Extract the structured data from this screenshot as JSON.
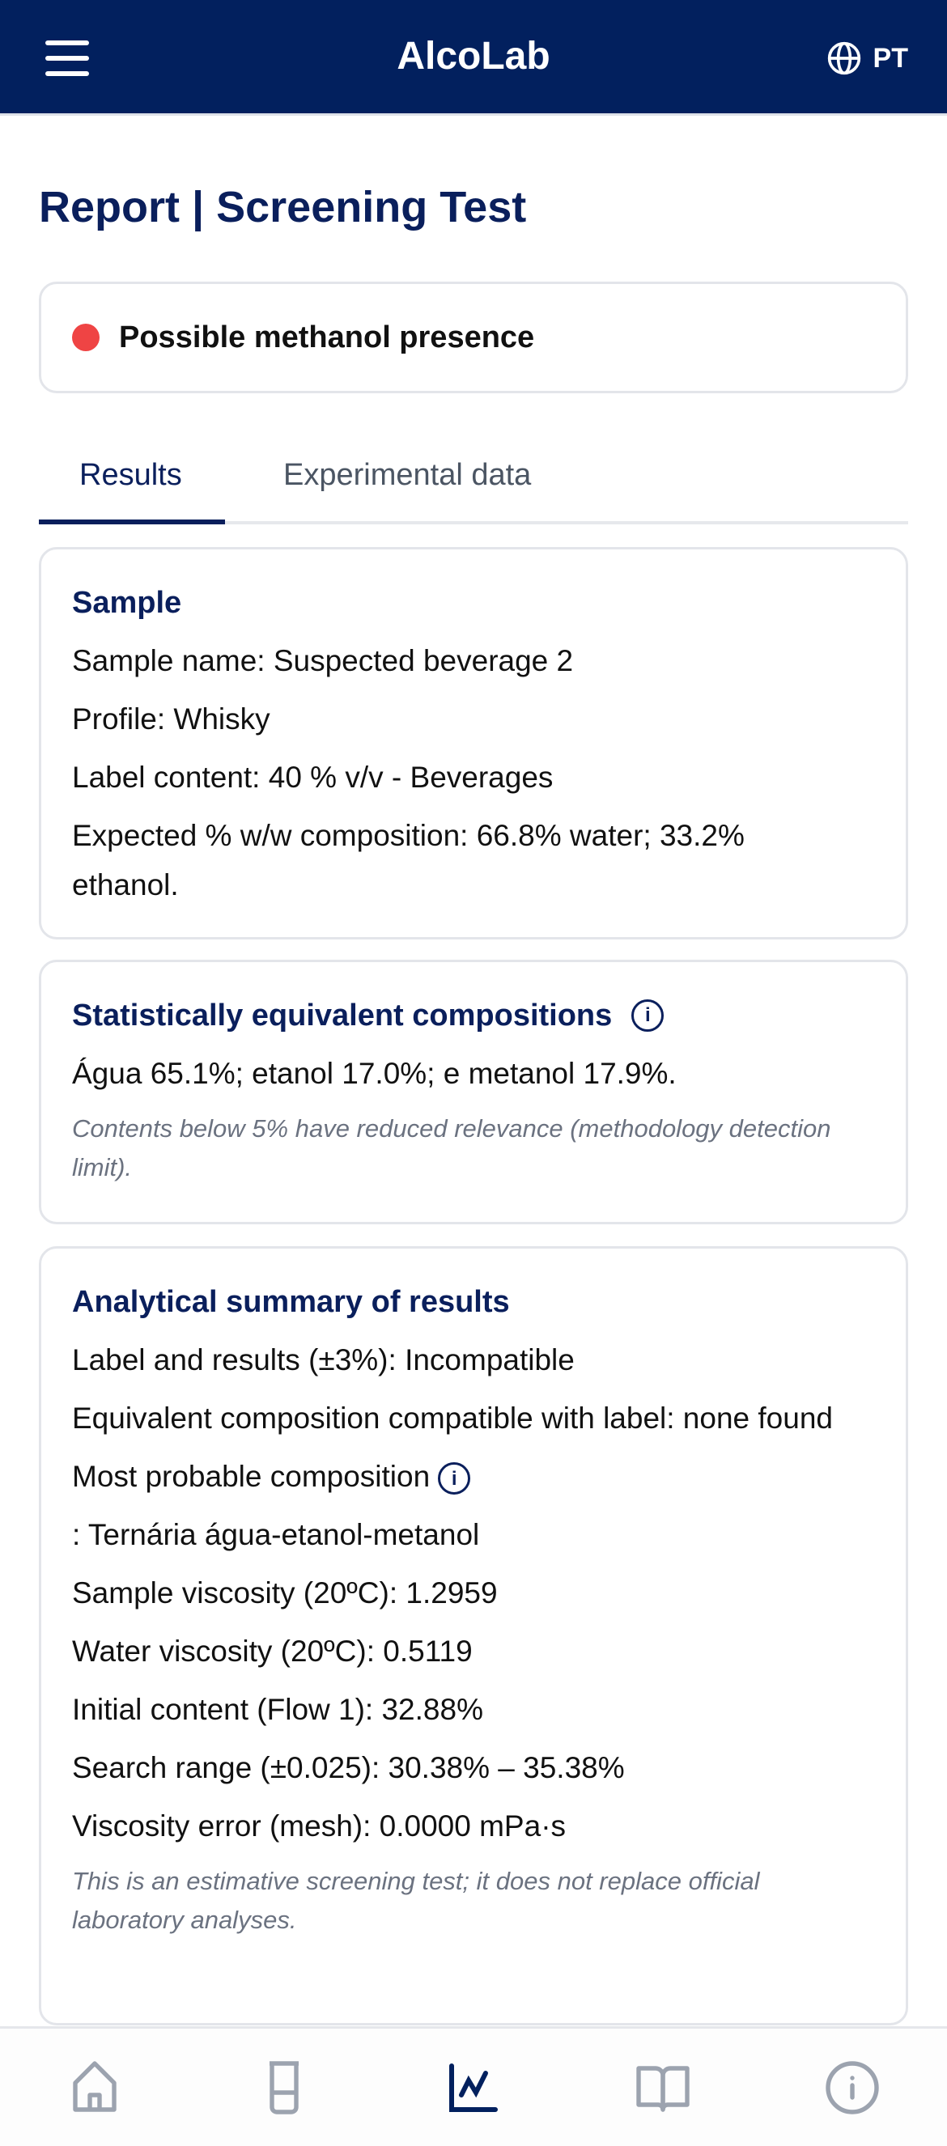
{
  "header": {
    "title": "AlcoLab",
    "language": "PT"
  },
  "page_title": "Report | Screening Test",
  "alert": {
    "text": "Possible methanol presence",
    "color": "#ef4444"
  },
  "tabs": [
    {
      "label": "Results",
      "active": true
    },
    {
      "label": "Experimental data",
      "active": false
    }
  ],
  "sample": {
    "title": "Sample",
    "lines": [
      "Sample name: Suspected beverage 2",
      "Profile: Whisky",
      "Label content: 40 % v/v - Beverages",
      "Expected % w/w composition: 66.8% water; 33.2% ethanol."
    ]
  },
  "equivalent": {
    "title": "Statistically equivalent compositions",
    "text": "Água 65.1%; etanol 17.0%; e metanol 17.9%.",
    "note": "Contents below 5% have reduced relevance (methodology detection limit)."
  },
  "summary": {
    "title": "Analytical summary of results",
    "lines": [
      "Label and results (±3%): Incompatible",
      "Equivalent composition compatible with label: none found",
      "Most probable composition",
      ": Ternária água-etanol-metanol",
      "Sample viscosity (20ºC): 1.2959",
      "Water viscosity (20ºC): 0.5119",
      "Initial content (Flow 1): 32.88%",
      "Search range (±0.025): 30.38% – 35.38%",
      "Viscosity error (mesh): 0.0000 mPa·s"
    ],
    "note": "This is an estimative screening test; it does not replace official laboratory analyses."
  },
  "nav": {
    "items": [
      "home-icon",
      "test-tube-icon",
      "chart-icon",
      "book-icon",
      "info-icon"
    ],
    "active": "chart-icon"
  },
  "colors": {
    "primary": "#02205e",
    "inactive_icon": "#9ca3af"
  }
}
